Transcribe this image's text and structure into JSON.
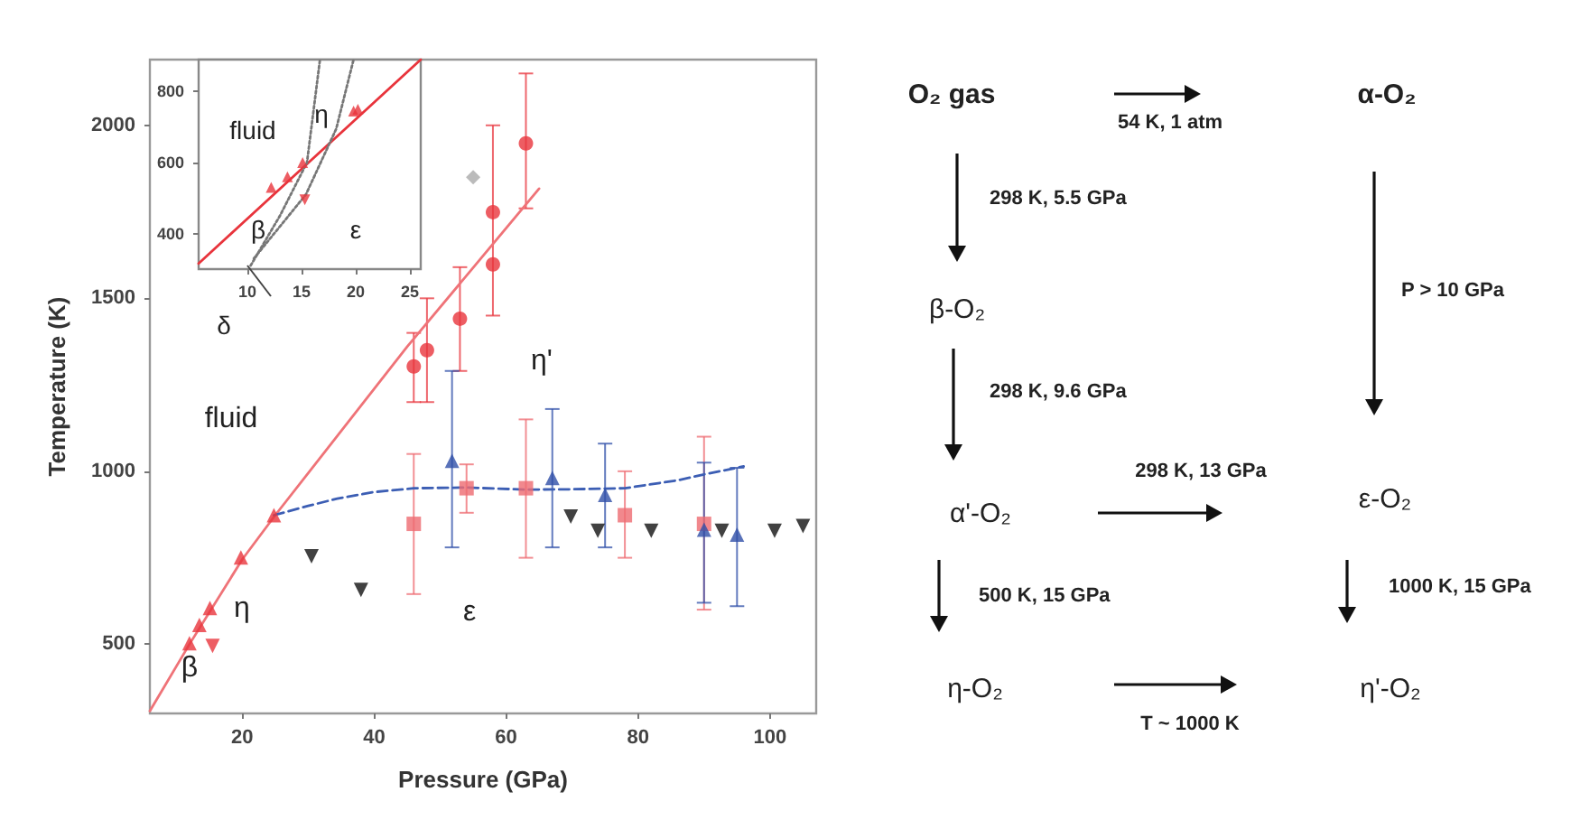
{
  "chart_data": [
    {
      "type": "scatter",
      "xlabel": "Pressure (GPa)",
      "ylabel": "Temperature (K)",
      "xlim": [
        6,
        107
      ],
      "ylim": [
        300,
        2190
      ],
      "xticks": [
        20,
        40,
        60,
        80,
        100
      ],
      "yticks": [
        500,
        1000,
        1500,
        2000
      ],
      "grid": false,
      "annotations": [
        "fluid",
        "η'",
        "η",
        "ε",
        "β"
      ],
      "series": [
        {
          "type": "line",
          "color": "#ef7378",
          "marker": "none",
          "line_style": "solid",
          "x": [
            6,
            12,
            20,
            25,
            45,
            65
          ],
          "values": [
            307,
            500,
            745,
            873,
            1360,
            1817
          ]
        },
        {
          "type": "line",
          "color": "#3c5eb4",
          "marker": "none",
          "line_style": "dashed",
          "x": [
            24.8,
            30,
            34.4,
            40,
            46,
            54,
            63,
            70,
            78,
            86,
            90,
            96
          ],
          "values": [
            873,
            900,
            921,
            940,
            951,
            953,
            947,
            948,
            951,
            974,
            991,
            1014
          ]
        },
        {
          "type": "scatter",
          "color": "#e8343c",
          "marker": "circle",
          "x": [
            46,
            48,
            53,
            58,
            58,
            63
          ],
          "values": [
            1303,
            1350,
            1441,
            1749,
            1598,
            1948
          ],
          "errors": [
            [
              1200,
              1400
            ],
            [
              1200,
              1500
            ],
            [
              1290,
              1590
            ],
            [
              1450,
              2000
            ],
            null,
            [
              1760,
              2150
            ]
          ]
        },
        {
          "type": "scatter",
          "color": "#ee6a70",
          "marker": "square",
          "x": [
            46,
            54,
            63,
            78,
            90
          ],
          "values": [
            848,
            951,
            951,
            873,
            848
          ],
          "errors": [
            [
              645,
              1050
            ],
            [
              880,
              1020
            ],
            [
              750,
              1150
            ],
            [
              750,
              1000
            ],
            [
              600,
              1100
            ]
          ]
        },
        {
          "type": "scatter",
          "color": "#2f4fa8",
          "marker": "triangle",
          "x": [
            51.8,
            67,
            75,
            90,
            95
          ],
          "values": [
            1030,
            981,
            932,
            831,
            817
          ],
          "errors": [
            [
              780,
              1290
            ],
            [
              780,
              1180
            ],
            [
              780,
              1080
            ],
            [
              620,
              1025
            ],
            [
              610,
              1010
            ]
          ]
        },
        {
          "type": "scatter",
          "color": "#111111",
          "marker": "triangle-down",
          "x": [
            30.5,
            38,
            69.8,
            73.9,
            82,
            92.7,
            100.7,
            105
          ],
          "values": [
            754,
            657,
            869,
            828,
            828,
            828,
            828,
            842
          ]
        },
        {
          "type": "scatter",
          "color": "#e8343c",
          "marker": "triangle",
          "x": [
            12,
            13.5,
            15.1,
            19.8,
            24.8
          ],
          "values": [
            503,
            556,
            605,
            751,
            873
          ]
        },
        {
          "type": "scatter",
          "color": "#e8343c",
          "marker": "triangle-down",
          "x": [
            15.5
          ],
          "values": [
            495
          ]
        },
        {
          "type": "scatter",
          "color": "#aaaaaa",
          "marker": "diamond",
          "x": [
            55
          ],
          "values": [
            1850
          ]
        }
      ]
    },
    {
      "type": "line",
      "xlim": [
        5.5,
        26
      ],
      "ylim": [
        300,
        890
      ],
      "xticks": [
        10,
        15,
        20,
        25
      ],
      "yticks": [
        400,
        600,
        800
      ],
      "grid": false,
      "annotations": [
        "fluid",
        "η",
        "β",
        "ε",
        "δ"
      ],
      "series": [
        {
          "color": "#e8343c",
          "marker": "none",
          "line_style": "solid",
          "x": [
            5.5,
            26
          ],
          "values": [
            316,
            890
          ]
        },
        {
          "color": "#777777",
          "marker": "none",
          "line_style": "dotted",
          "x": [
            10.3,
            13,
            15.5,
            16.7
          ],
          "values": [
            310,
            450,
            600,
            890
          ]
        },
        {
          "color": "#777777",
          "marker": "none",
          "line_style": "dotted",
          "x": [
            10.6,
            15.4,
            18.2,
            19.8
          ],
          "values": [
            330,
            510,
            695,
            890
          ]
        },
        {
          "type": "scatter",
          "color": "#e8343c",
          "marker": "triangle",
          "x": [
            12.2,
            13.7,
            15.1,
            19.8,
            20.2
          ],
          "values": [
            530,
            560,
            600,
            745,
            750
          ]
        },
        {
          "type": "scatter",
          "color": "#e8343c",
          "marker": "triangle-down",
          "x": [
            15.3
          ],
          "values": [
            495
          ]
        }
      ]
    },
    {
      "type": "other",
      "annotations": [
        "O₂ gas",
        "α-O₂",
        "54 K, 1 atm",
        "298 K, 5.5 GPa",
        "β-O₂",
        "P > 10 GPa",
        "298 K, 9.6 GPa",
        "α'-O₂",
        "298 K, 13 GPa",
        "ε-O₂",
        "500 K, 15 GPa",
        "1000 K, 15 GPa",
        "η-O₂",
        "T ~ 1000 K",
        "η'-O₂"
      ]
    }
  ]
}
